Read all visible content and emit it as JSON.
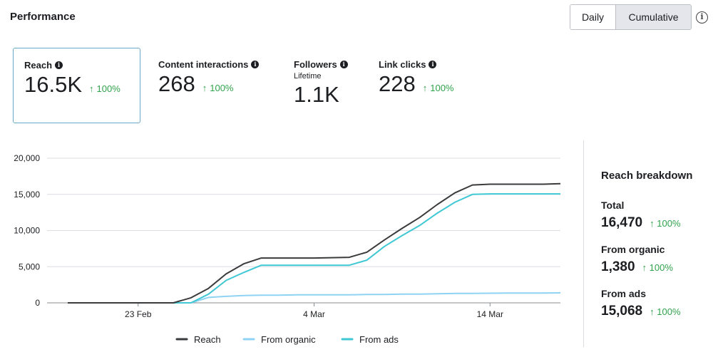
{
  "header": {
    "title": "Performance",
    "toggle": {
      "daily": "Daily",
      "cumulative": "Cumulative",
      "selected": "Cumulative"
    },
    "info_icon": "info-icon"
  },
  "metrics": [
    {
      "label": "Reach",
      "sublabel": "",
      "value": "16.5K",
      "change": "100%",
      "selected": true
    },
    {
      "label": "Content interactions",
      "sublabel": "",
      "value": "268",
      "change": "100%",
      "selected": false
    },
    {
      "label": "Followers",
      "sublabel": "Lifetime",
      "value": "1.1K",
      "change": "",
      "selected": false
    },
    {
      "label": "Link clicks",
      "sublabel": "",
      "value": "228",
      "change": "100%",
      "selected": false
    }
  ],
  "breakdown": {
    "title": "Reach breakdown",
    "items": [
      {
        "label": "Total",
        "value": "16,470",
        "change": "100%"
      },
      {
        "label": "From organic",
        "value": "1,380",
        "change": "100%"
      },
      {
        "label": "From ads",
        "value": "15,068",
        "change": "100%"
      }
    ]
  },
  "colors": {
    "reach": "#3a3b3c",
    "organic": "#8fd3f4",
    "ads": "#3fc8d4",
    "positive": "#31a24c"
  },
  "chart_data": {
    "type": "line",
    "title": "",
    "xlabel": "",
    "ylabel": "",
    "ylim": [
      0,
      20000
    ],
    "yticks": [
      0,
      5000,
      10000,
      15000,
      20000
    ],
    "ytick_labels": [
      "0",
      "5,000",
      "10,000",
      "15,000",
      "20,000"
    ],
    "x_days": 29,
    "xticks": [
      {
        "day": 4,
        "label": "23 Feb"
      },
      {
        "day": 14,
        "label": "4 Mar"
      },
      {
        "day": 24,
        "label": "14 Mar"
      }
    ],
    "legend": [
      "Reach",
      "From organic",
      "From ads"
    ],
    "series": [
      {
        "name": "Reach",
        "color": "#3a3b3c",
        "x": [
          0,
          1,
          2,
          3,
          4,
          5,
          6,
          7,
          8,
          9,
          10,
          11,
          12,
          13,
          14,
          15,
          16,
          17,
          18,
          19,
          20,
          21,
          22,
          23,
          24,
          25,
          26,
          27,
          28
        ],
        "values": [
          0,
          0,
          0,
          0,
          0,
          0,
          0,
          700,
          2000,
          4000,
          5400,
          6200,
          6200,
          6200,
          6200,
          6250,
          6300,
          7000,
          8700,
          10300,
          11800,
          13600,
          15200,
          16300,
          16400,
          16400,
          16400,
          16400,
          16470
        ]
      },
      {
        "name": "From organic",
        "color": "#8fd3f4",
        "x": [
          0,
          1,
          2,
          3,
          4,
          5,
          6,
          7,
          8,
          9,
          10,
          11,
          12,
          13,
          14,
          15,
          16,
          17,
          18,
          19,
          20,
          21,
          22,
          23,
          24,
          25,
          26,
          27,
          28
        ],
        "values": [
          0,
          0,
          0,
          0,
          0,
          0,
          0,
          0,
          750,
          900,
          1000,
          1050,
          1050,
          1100,
          1100,
          1100,
          1100,
          1150,
          1150,
          1200,
          1200,
          1250,
          1300,
          1300,
          1330,
          1350,
          1350,
          1360,
          1380
        ]
      },
      {
        "name": "From ads",
        "color": "#3fc8d4",
        "x": [
          0,
          1,
          2,
          3,
          4,
          5,
          6,
          7,
          8,
          9,
          10,
          11,
          12,
          13,
          14,
          15,
          16,
          17,
          18,
          19,
          20,
          21,
          22,
          23,
          24,
          25,
          26,
          27,
          28
        ],
        "values": [
          0,
          0,
          0,
          0,
          0,
          0,
          0,
          0,
          1200,
          3100,
          4200,
          5200,
          5200,
          5200,
          5200,
          5200,
          5200,
          5900,
          7800,
          9300,
          10700,
          12400,
          13900,
          15000,
          15068,
          15068,
          15068,
          15068,
          15068
        ]
      }
    ]
  }
}
